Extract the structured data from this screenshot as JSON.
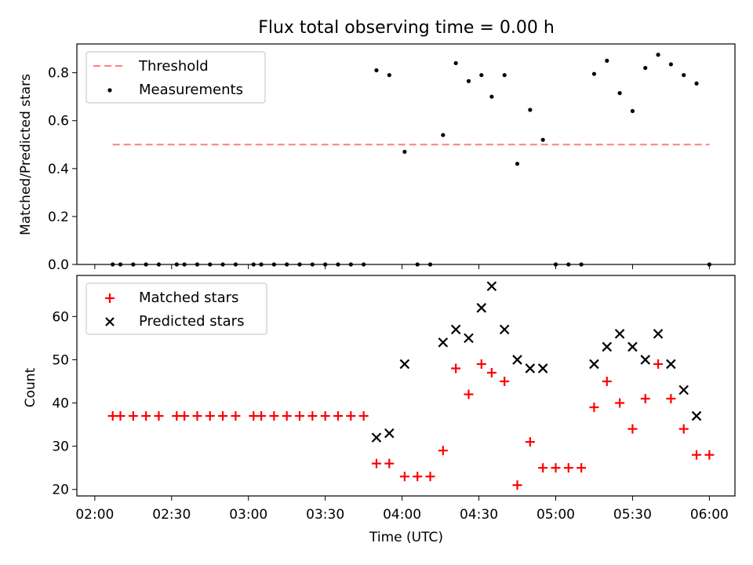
{
  "chart_data": [
    {
      "type": "scatter",
      "title": "Flux total observing time = 0.00 h",
      "ylabel": "Matched/Predicted stars",
      "ylim": [
        0,
        0.92
      ],
      "yticks": [
        "0.0",
        "0.2",
        "0.4",
        "0.6",
        "0.8"
      ],
      "legend": [
        "Threshold",
        "Measurements"
      ],
      "legend_position": "top-left",
      "colors": {
        "threshold": "#ff7f7f",
        "measurements": "#000000"
      },
      "threshold": {
        "name": "Threshold",
        "y": 0.5,
        "x_start": "02:07",
        "x_end": "06:00"
      },
      "series": [
        {
          "name": "Measurements",
          "points": [
            [
              "02:07",
              0
            ],
            [
              "02:10",
              0
            ],
            [
              "02:15",
              0
            ],
            [
              "02:20",
              0
            ],
            [
              "02:25",
              0
            ],
            [
              "02:32",
              0
            ],
            [
              "02:35",
              0
            ],
            [
              "02:40",
              0
            ],
            [
              "02:45",
              0
            ],
            [
              "02:50",
              0
            ],
            [
              "02:55",
              0
            ],
            [
              "03:02",
              0
            ],
            [
              "03:05",
              0
            ],
            [
              "03:10",
              0
            ],
            [
              "03:15",
              0
            ],
            [
              "03:20",
              0
            ],
            [
              "03:25",
              0
            ],
            [
              "03:30",
              0
            ],
            [
              "03:35",
              0
            ],
            [
              "03:40",
              0
            ],
            [
              "03:45",
              0
            ],
            [
              "03:50",
              0.81
            ],
            [
              "03:55",
              0.79
            ],
            [
              "04:01",
              0.47
            ],
            [
              "04:06",
              0
            ],
            [
              "04:11",
              0
            ],
            [
              "04:16",
              0.54
            ],
            [
              "04:21",
              0.84
            ],
            [
              "04:26",
              0.765
            ],
            [
              "04:31",
              0.79
            ],
            [
              "04:35",
              0.7
            ],
            [
              "04:40",
              0.79
            ],
            [
              "04:45",
              0.42
            ],
            [
              "04:50",
              0.645
            ],
            [
              "04:55",
              0.52
            ],
            [
              "05:00",
              0
            ],
            [
              "05:05",
              0
            ],
            [
              "05:10",
              0
            ],
            [
              "05:15",
              0.795
            ],
            [
              "05:20",
              0.85
            ],
            [
              "05:25",
              0.715
            ],
            [
              "05:30",
              0.64
            ],
            [
              "05:35",
              0.82
            ],
            [
              "05:40",
              0.875
            ],
            [
              "05:45",
              0.835
            ],
            [
              "05:50",
              0.79
            ],
            [
              "05:55",
              0.755
            ],
            [
              "06:00",
              0
            ]
          ]
        }
      ]
    },
    {
      "type": "scatter",
      "title": "",
      "xlabel": "Time (UTC)",
      "ylabel": "Count",
      "ylim": [
        18.5,
        69.5
      ],
      "yticks": [
        "20",
        "30",
        "40",
        "50",
        "60"
      ],
      "xticks": [
        "02:00",
        "02:30",
        "03:00",
        "03:30",
        "04:00",
        "04:30",
        "05:00",
        "05:30",
        "06:00"
      ],
      "xlim": [
        "01:53",
        "06:10"
      ],
      "legend_position": "top-left",
      "colors": {
        "matched": "#ff0000",
        "predicted": "#000000"
      },
      "series": [
        {
          "name": "Matched stars",
          "points": [
            [
              "02:07",
              37
            ],
            [
              "02:10",
              37
            ],
            [
              "02:15",
              37
            ],
            [
              "02:20",
              37
            ],
            [
              "02:25",
              37
            ],
            [
              "02:32",
              37
            ],
            [
              "02:35",
              37
            ],
            [
              "02:40",
              37
            ],
            [
              "02:45",
              37
            ],
            [
              "02:50",
              37
            ],
            [
              "02:55",
              37
            ],
            [
              "03:02",
              37
            ],
            [
              "03:05",
              37
            ],
            [
              "03:10",
              37
            ],
            [
              "03:15",
              37
            ],
            [
              "03:20",
              37
            ],
            [
              "03:25",
              37
            ],
            [
              "03:30",
              37
            ],
            [
              "03:35",
              37
            ],
            [
              "03:40",
              37
            ],
            [
              "03:45",
              37
            ],
            [
              "03:50",
              26
            ],
            [
              "03:55",
              26
            ],
            [
              "04:01",
              23
            ],
            [
              "04:06",
              23
            ],
            [
              "04:11",
              23
            ],
            [
              "04:16",
              29
            ],
            [
              "04:21",
              48
            ],
            [
              "04:26",
              42
            ],
            [
              "04:31",
              49
            ],
            [
              "04:35",
              47
            ],
            [
              "04:40",
              45
            ],
            [
              "04:45",
              21
            ],
            [
              "04:50",
              31
            ],
            [
              "04:55",
              25
            ],
            [
              "05:00",
              25
            ],
            [
              "05:05",
              25
            ],
            [
              "05:10",
              25
            ],
            [
              "05:15",
              39
            ],
            [
              "05:20",
              45
            ],
            [
              "05:25",
              40
            ],
            [
              "05:30",
              34
            ],
            [
              "05:35",
              41
            ],
            [
              "05:40",
              49
            ],
            [
              "05:45",
              41
            ],
            [
              "05:50",
              34
            ],
            [
              "05:55",
              28
            ],
            [
              "06:00",
              28
            ]
          ]
        },
        {
          "name": "Predicted stars",
          "points": [
            [
              "03:50",
              32
            ],
            [
              "03:55",
              33
            ],
            [
              "04:01",
              49
            ],
            [
              "04:16",
              54
            ],
            [
              "04:21",
              57
            ],
            [
              "04:26",
              55
            ],
            [
              "04:31",
              62
            ],
            [
              "04:35",
              67
            ],
            [
              "04:40",
              57
            ],
            [
              "04:45",
              50
            ],
            [
              "04:50",
              48
            ],
            [
              "04:55",
              48
            ],
            [
              "05:15",
              49
            ],
            [
              "05:20",
              53
            ],
            [
              "05:25",
              56
            ],
            [
              "05:30",
              53
            ],
            [
              "05:35",
              50
            ],
            [
              "05:40",
              56
            ],
            [
              "05:45",
              49
            ],
            [
              "05:50",
              43
            ],
            [
              "05:55",
              37
            ]
          ]
        }
      ]
    }
  ]
}
